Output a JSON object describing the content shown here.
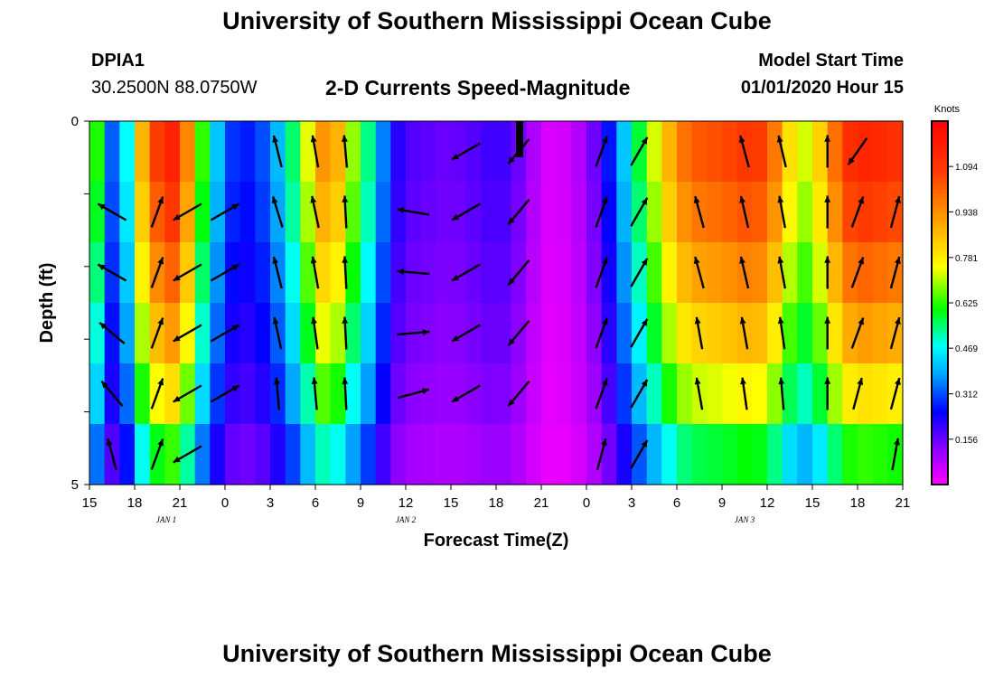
{
  "header": {
    "title": "University of Southern Mississippi Ocean Cube",
    "station_id": "DPIA1",
    "station_coords": "30.2500N 88.0750W",
    "chart_title": "2-D Currents Speed-Magnitude",
    "start_label": "Model Start Time",
    "start_value": "01/01/2020 Hour 15"
  },
  "footer": {
    "title": "University of Southern Mississippi Ocean Cube"
  },
  "chart_data": {
    "type": "heatmap",
    "title": "2-D Currents Speed-Magnitude",
    "xlabel": "Forecast Time(Z)",
    "ylabel": "Depth (ft)",
    "x_ticks": [
      "15",
      "18",
      "21",
      "0",
      "3",
      "6",
      "9",
      "12",
      "15",
      "18",
      "21",
      "0",
      "3",
      "6",
      "9",
      "12",
      "15",
      "18",
      "21"
    ],
    "date_labels": [
      {
        "label": "JAN 1",
        "tick_index": 1.7
      },
      {
        "label": "JAN 2",
        "tick_index": 7
      },
      {
        "label": "JAN 3",
        "tick_index": 14.5
      }
    ],
    "y_ticks": [
      "0",
      "5"
    ],
    "depth_levels": 5,
    "ylim": [
      0,
      5
    ],
    "colorbar": {
      "title": "Knots",
      "ticks": [
        "0.156",
        "0.312",
        "0.469",
        "0.625",
        "0.781",
        "0.938",
        "1.094"
      ],
      "range": [
        0,
        1.25
      ]
    },
    "speed_profile": [
      {
        "h": 0,
        "v": 0.78
      },
      {
        "h": 1,
        "v": 0.45
      },
      {
        "h": 2,
        "v": 0.2
      },
      {
        "h": 3,
        "v": 0.75
      },
      {
        "h": 4,
        "v": 1.0
      },
      {
        "h": 5,
        "v": 1.15
      },
      {
        "h": 6,
        "v": 1.15
      },
      {
        "h": 7,
        "v": 0.75
      },
      {
        "h": 8,
        "v": 0.5
      },
      {
        "h": 9,
        "v": 0.33
      },
      {
        "h": 10,
        "v": 0.25
      },
      {
        "h": 12,
        "v": 0.33
      },
      {
        "h": 14,
        "v": 0.62
      },
      {
        "h": 15,
        "v": 0.85
      },
      {
        "h": 16,
        "v": 1.0
      },
      {
        "h": 17,
        "v": 0.75
      },
      {
        "h": 18,
        "v": 0.62
      },
      {
        "h": 19,
        "v": 0.45
      },
      {
        "h": 20,
        "v": 0.25
      },
      {
        "h": 21,
        "v": 0.18
      },
      {
        "h": 24,
        "v": 0.15
      },
      {
        "h": 27,
        "v": 0.2
      },
      {
        "h": 28,
        "v": 0.18
      },
      {
        "h": 29,
        "v": 0.12
      },
      {
        "h": 30,
        "v": 0.05
      },
      {
        "h": 31,
        "v": 0.03
      },
      {
        "h": 33,
        "v": 0.1
      },
      {
        "h": 34,
        "v": 0.2
      },
      {
        "h": 35,
        "v": 0.33
      },
      {
        "h": 36,
        "v": 0.5
      },
      {
        "h": 37,
        "v": 0.65
      },
      {
        "h": 38,
        "v": 0.8
      },
      {
        "h": 39,
        "v": 0.95
      },
      {
        "h": 40,
        "v": 1.02
      },
      {
        "h": 42,
        "v": 1.05
      },
      {
        "h": 44,
        "v": 1.1
      },
      {
        "h": 45,
        "v": 1.05
      },
      {
        "h": 46,
        "v": 0.9
      },
      {
        "h": 47,
        "v": 0.7
      },
      {
        "h": 48,
        "v": 0.75
      },
      {
        "h": 49,
        "v": 0.9
      },
      {
        "h": 50,
        "v": 1.08
      },
      {
        "h": 51,
        "v": 1.15
      },
      {
        "h": 54,
        "v": 1.1
      }
    ],
    "depth_factors": [
      1.0,
      0.95,
      0.88,
      0.8,
      0.7,
      0.55
    ],
    "vectors": {
      "hours": [
        1.5,
        4.5,
        6.5,
        9,
        12.5,
        15,
        17,
        21.5,
        25,
        28.5,
        31,
        34,
        36.5,
        40.5,
        43.5,
        46,
        49,
        51,
        53.5
      ],
      "rows": [
        [
          null,
          null,
          null,
          null,
          346,
          350,
          355,
          null,
          240,
          220,
          null,
          20,
          30,
          null,
          345,
          347,
          0,
          215,
          null
        ],
        [
          300,
          20,
          240,
          60,
          343,
          348,
          357,
          280,
          240,
          220,
          null,
          20,
          30,
          345,
          347,
          350,
          0,
          20,
          15
        ],
        [
          300,
          20,
          240,
          60,
          346,
          350,
          357,
          275,
          240,
          220,
          null,
          20,
          30,
          345,
          347,
          350,
          0,
          20,
          15
        ],
        [
          310,
          20,
          240,
          60,
          348,
          352,
          357,
          85,
          240,
          220,
          null,
          20,
          30,
          350,
          350,
          352,
          0,
          20,
          15
        ],
        [
          320,
          20,
          240,
          60,
          355,
          355,
          357,
          75,
          240,
          220,
          null,
          20,
          30,
          350,
          352,
          355,
          0,
          15,
          15
        ],
        [
          345,
          20,
          240,
          null,
          null,
          null,
          null,
          null,
          null,
          null,
          null,
          15,
          30,
          null,
          null,
          null,
          null,
          null,
          10
        ]
      ]
    },
    "legend": "right"
  }
}
